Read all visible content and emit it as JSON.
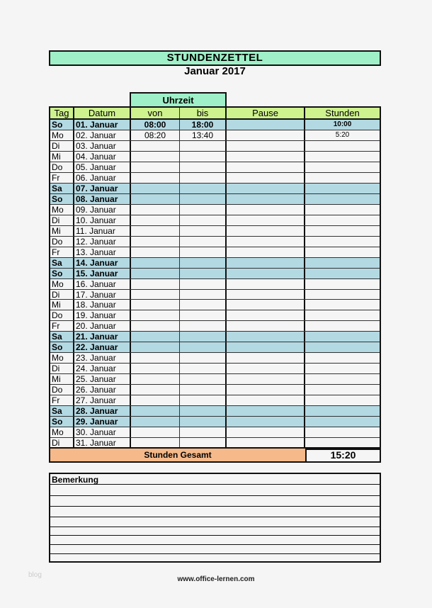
{
  "title": "STUNDENZETTEL",
  "subtitle": "Januar 2017",
  "group_header": "Uhrzeit",
  "columns": [
    "Tag",
    "Datum",
    "von",
    "bis",
    "Pause",
    "Stunden"
  ],
  "rows": [
    {
      "tag": "So",
      "datum": "01. Januar",
      "von": "08:00",
      "bis": "18:00",
      "pause": "",
      "stunden": "10:00",
      "weekend": true
    },
    {
      "tag": "Mo",
      "datum": "02. Januar",
      "von": "08:20",
      "bis": "13:40",
      "pause": "",
      "stunden": "5:20",
      "weekend": false
    },
    {
      "tag": "Di",
      "datum": "03. Januar",
      "weekend": false
    },
    {
      "tag": "Mi",
      "datum": "04. Januar",
      "weekend": false
    },
    {
      "tag": "Do",
      "datum": "05. Januar",
      "weekend": false
    },
    {
      "tag": "Fr",
      "datum": "06. Januar",
      "weekend": false
    },
    {
      "tag": "Sa",
      "datum": "07. Januar",
      "weekend": true
    },
    {
      "tag": "So",
      "datum": "08. Januar",
      "weekend": true
    },
    {
      "tag": "Mo",
      "datum": "09. Januar",
      "weekend": false
    },
    {
      "tag": "Di",
      "datum": "10. Januar",
      "weekend": false
    },
    {
      "tag": "Mi",
      "datum": "11. Januar",
      "weekend": false
    },
    {
      "tag": "Do",
      "datum": "12. Januar",
      "weekend": false
    },
    {
      "tag": "Fr",
      "datum": "13. Januar",
      "weekend": false
    },
    {
      "tag": "Sa",
      "datum": "14. Januar",
      "weekend": true
    },
    {
      "tag": "So",
      "datum": "15. Januar",
      "weekend": true
    },
    {
      "tag": "Mo",
      "datum": "16. Januar",
      "weekend": false
    },
    {
      "tag": "Di",
      "datum": "17. Januar",
      "weekend": false
    },
    {
      "tag": "Mi",
      "datum": "18. Januar",
      "weekend": false
    },
    {
      "tag": "Do",
      "datum": "19. Januar",
      "weekend": false
    },
    {
      "tag": "Fr",
      "datum": "20. Januar",
      "weekend": false
    },
    {
      "tag": "Sa",
      "datum": "21. Januar",
      "weekend": true
    },
    {
      "tag": "So",
      "datum": "22. Januar",
      "weekend": true
    },
    {
      "tag": "Mo",
      "datum": "23. Januar",
      "weekend": false
    },
    {
      "tag": "Di",
      "datum": "24. Januar",
      "weekend": false
    },
    {
      "tag": "Mi",
      "datum": "25. Januar",
      "weekend": false
    },
    {
      "tag": "Do",
      "datum": "26. Januar",
      "weekend": false
    },
    {
      "tag": "Fr",
      "datum": "27. Januar",
      "weekend": false
    },
    {
      "tag": "Sa",
      "datum": "28. Januar",
      "weekend": true
    },
    {
      "tag": "So",
      "datum": "29. Januar",
      "weekend": true
    },
    {
      "tag": "Mo",
      "datum": "30. Januar",
      "weekend": false
    },
    {
      "tag": "Di",
      "datum": "31. Januar",
      "weekend": false
    }
  ],
  "total": {
    "label": "Stunden Gesamt",
    "value": "15:20"
  },
  "remarks_label": "Bemerkung",
  "footer": "www.office-lernen.com",
  "watermark": "blog",
  "colors": {
    "title": "#9ff0c8",
    "header": "#cef28e",
    "weekend": "#b3d9e3",
    "total": "#f5b98a"
  }
}
